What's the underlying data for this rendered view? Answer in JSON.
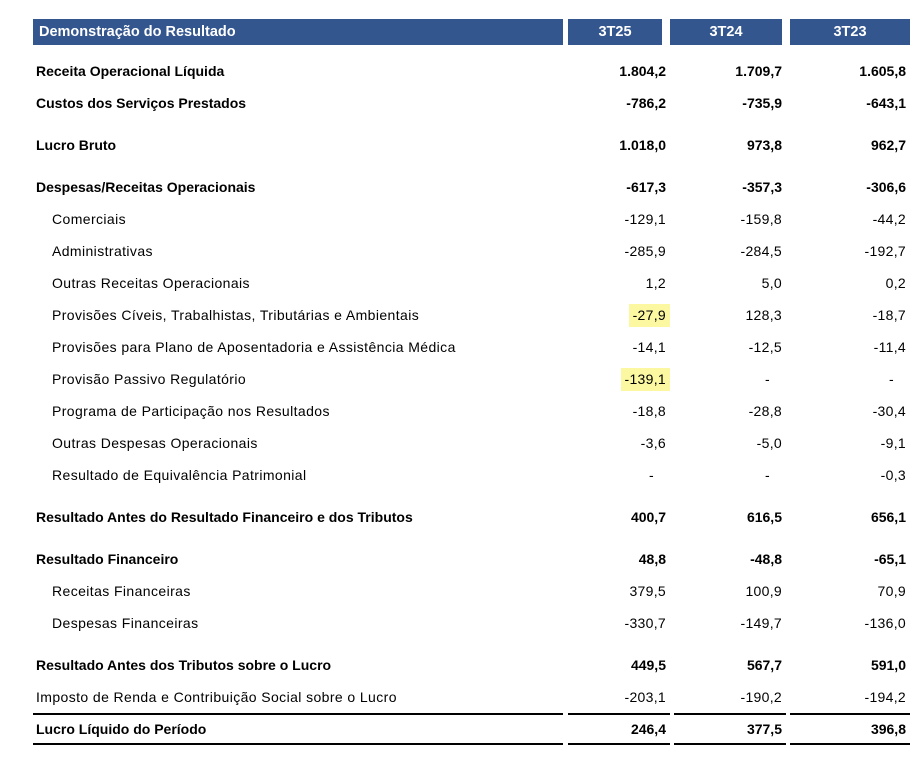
{
  "table": {
    "title": "Demonstração do Resultado",
    "columns": [
      "3T25",
      "3T24",
      "3T23"
    ],
    "rows": [
      {
        "label": "Receita Operacional Líquida",
        "style": "bold",
        "values": [
          "1.804,2",
          "1.709,7",
          "1.605,8"
        ]
      },
      {
        "label": "Custos dos Serviços Prestados",
        "style": "bold",
        "values": [
          "-786,2",
          "-735,9",
          "-643,1"
        ]
      },
      {
        "label": "Lucro Bruto",
        "style": "bold",
        "spacer": true,
        "values": [
          "1.018,0",
          "973,8",
          "962,7"
        ]
      },
      {
        "label": "Despesas/Receitas Operacionais",
        "style": "bold",
        "spacer": true,
        "values": [
          "-617,3",
          "-357,3",
          "-306,6"
        ]
      },
      {
        "label": "Comerciais",
        "style": "sub",
        "values": [
          "-129,1",
          "-159,8",
          "-44,2"
        ]
      },
      {
        "label": "Administrativas",
        "style": "sub",
        "values": [
          "-285,9",
          "-284,5",
          "-192,7"
        ]
      },
      {
        "label": "Outras Receitas Operacionais",
        "style": "sub",
        "values": [
          "1,2",
          "5,0",
          "0,2"
        ]
      },
      {
        "label": "Provisões Cíveis, Trabalhistas, Tributárias e Ambientais",
        "style": "sub",
        "values": [
          "-27,9",
          "128,3",
          "-18,7"
        ],
        "highlight": [
          0
        ]
      },
      {
        "label": "Provisões para Plano de Aposentadoria e Assistência Médica",
        "style": "sub",
        "values": [
          "-14,1",
          "-12,5",
          "-11,4"
        ]
      },
      {
        "label": "Provisão Passivo Regulatório",
        "style": "sub",
        "values": [
          "-139,1",
          "-",
          "-"
        ],
        "highlight": [
          0
        ]
      },
      {
        "label": "Programa de Participação nos Resultados",
        "style": "sub",
        "values": [
          "-18,8",
          "-28,8",
          "-30,4"
        ]
      },
      {
        "label": "Outras Despesas Operacionais",
        "style": "sub",
        "values": [
          "-3,6",
          "-5,0",
          "-9,1"
        ]
      },
      {
        "label": "Resultado de Equivalência Patrimonial",
        "style": "sub",
        "values": [
          "-",
          "-",
          "-0,3"
        ]
      },
      {
        "label": "Resultado Antes do Resultado Financeiro e dos Tributos",
        "style": "bold",
        "spacer": true,
        "values": [
          "400,7",
          "616,5",
          "656,1"
        ]
      },
      {
        "label": "Resultado Financeiro",
        "style": "bold",
        "spacer": true,
        "values": [
          "48,8",
          "-48,8",
          "-65,1"
        ]
      },
      {
        "label": "Receitas Financeiras",
        "style": "sub",
        "values": [
          "379,5",
          "100,9",
          "70,9"
        ]
      },
      {
        "label": "Despesas Financeiras",
        "style": "sub",
        "values": [
          "-330,7",
          "-149,7",
          "-136,0"
        ]
      },
      {
        "label": "Resultado Antes dos Tributos sobre o Lucro",
        "style": "bold",
        "spacer": true,
        "values": [
          "449,5",
          "567,7",
          "591,0"
        ]
      },
      {
        "label": "Imposto de Renda e Contribuição Social sobre o Lucro",
        "style": "plain",
        "values": [
          "-203,1",
          "-190,2",
          "-194,2"
        ]
      },
      {
        "label": "Lucro Líquido do Período",
        "style": "bold",
        "total": true,
        "values": [
          "246,4",
          "377,5",
          "396,8"
        ]
      }
    ],
    "colors": {
      "header_bg": "#33568F",
      "header_text": "#FFFFFF",
      "highlight": "#FBF8A1",
      "total_rule": "#000000"
    }
  }
}
